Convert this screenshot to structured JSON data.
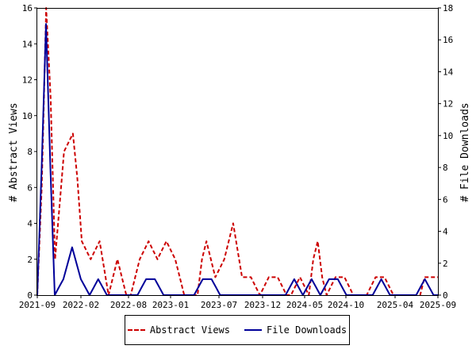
{
  "chart_data": {
    "type": "line",
    "x_tick_labels": [
      "2021-09",
      "2022-02",
      "2022-08",
      "2023-01",
      "2023-07",
      "2023-12",
      "2024-05",
      "2024-10",
      "2025-04",
      "2025-09"
    ],
    "ylabel_left": "# Abstract Views",
    "ylabel_right": "# File Downloads",
    "ylim_left": [
      0,
      16
    ],
    "ylim_right": [
      0,
      18
    ],
    "yticks_left": [
      0,
      2,
      4,
      6,
      8,
      10,
      12,
      14,
      16
    ],
    "yticks_right": [
      0,
      2,
      4,
      6,
      8,
      10,
      12,
      14,
      16,
      18
    ],
    "grid": false,
    "legend_position": "bottom",
    "series": [
      {
        "name": "Abstract Views",
        "axis": "left",
        "color": "#cc0000",
        "style": "dashed",
        "values": [
          0,
          6,
          16,
          11,
          2,
          5,
          8,
          8.5,
          9,
          6.5,
          3,
          2.5,
          2,
          2.5,
          3,
          1.5,
          0,
          1,
          2,
          1,
          0,
          0,
          1,
          2,
          2.5,
          3,
          2.5,
          2,
          2.5,
          3,
          2.5,
          2,
          1,
          0,
          0,
          0,
          0,
          2,
          3,
          2,
          1,
          1.5,
          2,
          3,
          4,
          2.5,
          1,
          1,
          1,
          0.5,
          0,
          0.5,
          1,
          1,
          1,
          0.5,
          0,
          0,
          0.5,
          1,
          0.5,
          0,
          2,
          3,
          1,
          0,
          0.5,
          1,
          1,
          1,
          0.5,
          0,
          0,
          0,
          0,
          0.5,
          1,
          1,
          1,
          0.5,
          0,
          0,
          0,
          0,
          0,
          0,
          0,
          1,
          1,
          1,
          1
        ]
      },
      {
        "name": "File Downloads",
        "axis": "right",
        "color": "#000099",
        "style": "solid",
        "values": [
          0,
          8,
          17,
          8,
          0,
          0.5,
          1,
          2,
          3,
          2,
          1,
          0.5,
          0,
          0.5,
          1,
          0.5,
          0,
          0,
          0,
          0,
          0,
          0,
          0,
          0,
          0.5,
          1,
          1,
          1,
          0.5,
          0,
          0,
          0,
          0,
          0,
          0,
          0,
          0,
          0.5,
          1,
          1,
          1,
          0.5,
          0,
          0,
          0,
          0,
          0,
          0,
          0,
          0,
          0,
          0,
          0,
          0,
          0,
          0,
          0,
          0,
          0.5,
          1,
          0.5,
          0,
          0.5,
          1,
          0.5,
          0,
          0.5,
          1,
          1,
          1,
          0.5,
          0,
          0,
          0,
          0,
          0,
          0,
          0,
          0.5,
          1,
          0.5,
          0,
          0,
          0,
          0,
          0,
          0,
          0,
          0.5,
          1,
          0.5,
          0,
          0
        ]
      }
    ]
  }
}
